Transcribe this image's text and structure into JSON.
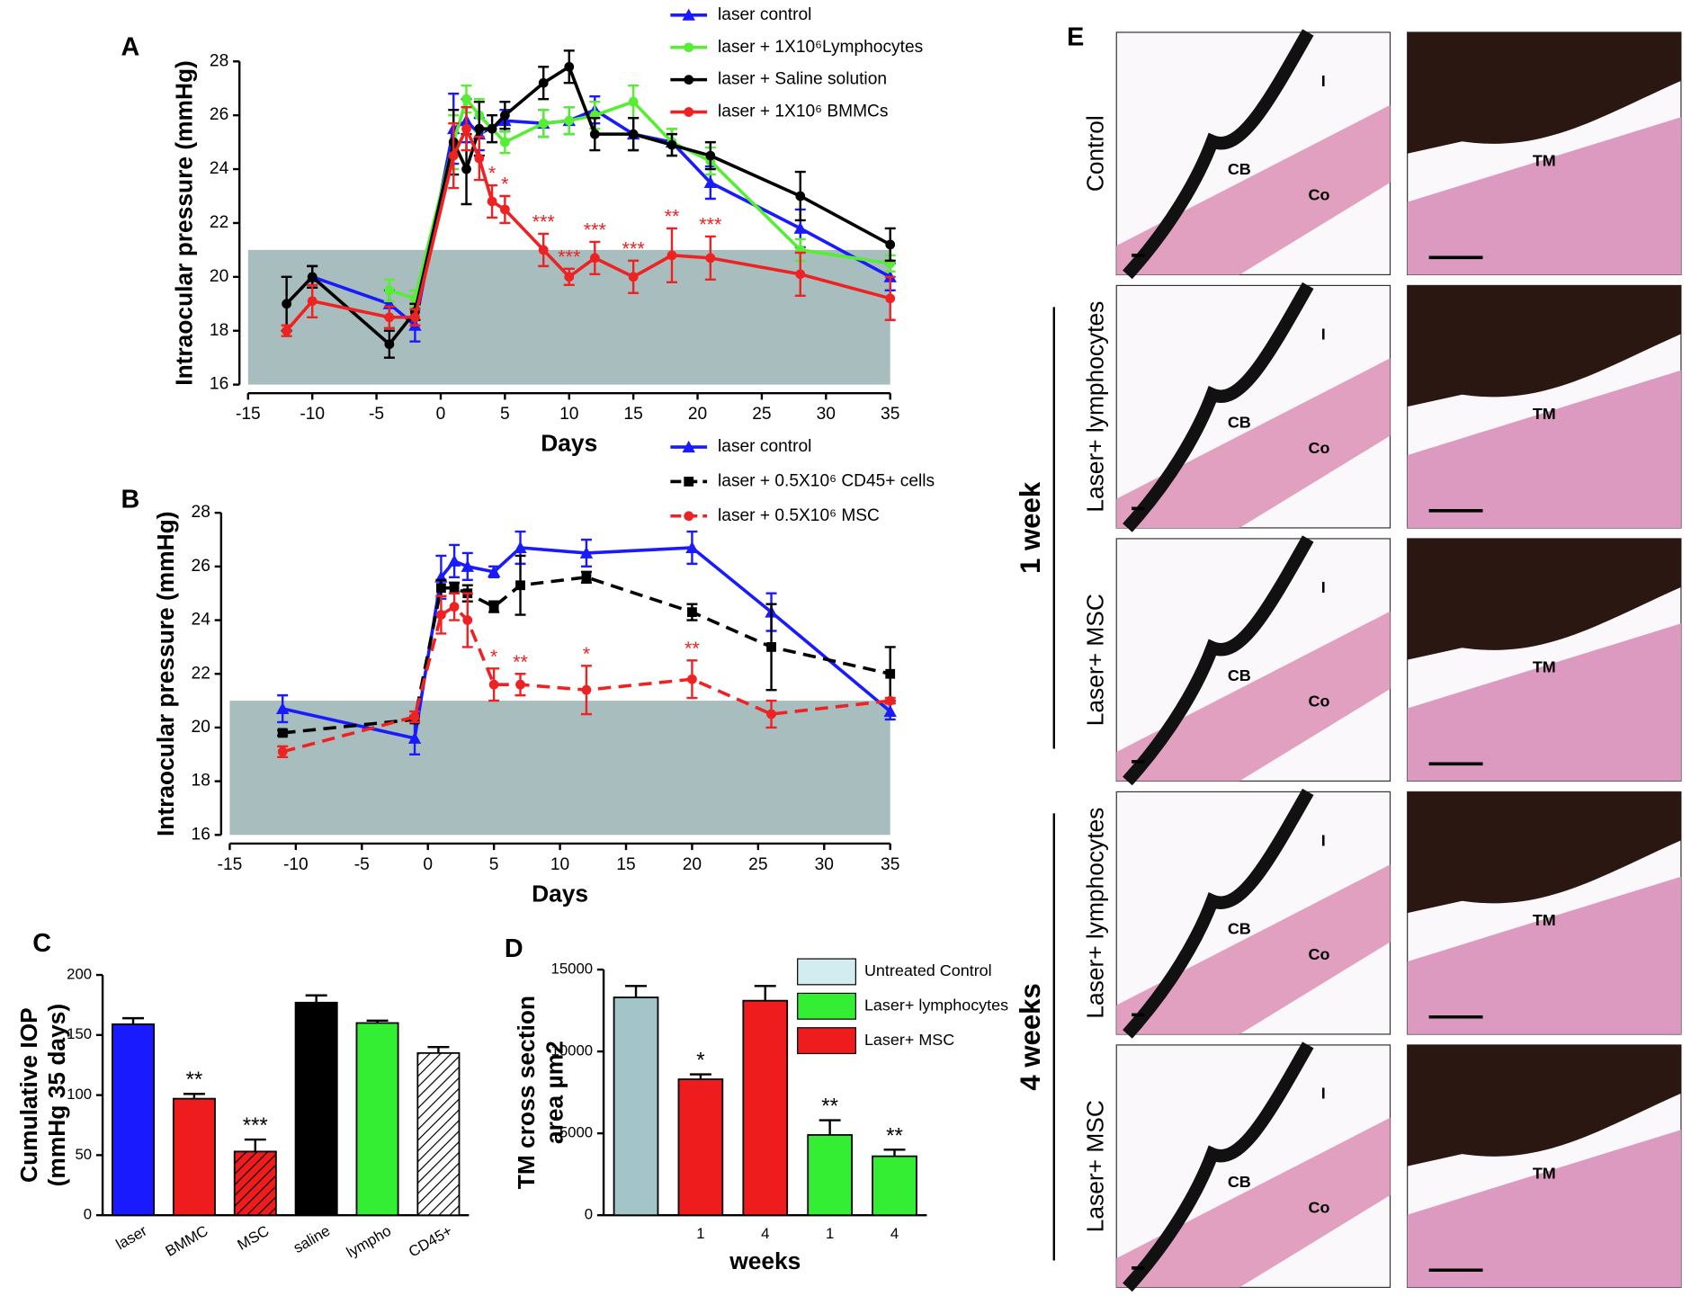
{
  "chart_data": [
    {
      "type": "line",
      "panel_label": "A",
      "xlabel": "Days",
      "ylabel": "Intraocular pressure (mmHg)",
      "xlim": [
        -15,
        35
      ],
      "ylim": [
        16,
        28
      ],
      "xticks": [
        -15,
        -10,
        -5,
        0,
        5,
        10,
        15,
        20,
        25,
        30,
        35
      ],
      "yticks": [
        16,
        18,
        20,
        22,
        24,
        26,
        28
      ],
      "shaded_band": [
        16,
        21
      ],
      "shaded_color": "#a8bdbd",
      "series": [
        {
          "name": "laser control",
          "color": "#1a1aff",
          "marker": "triangle",
          "dash": false,
          "x": [
            -10,
            -4,
            -2,
            1,
            2,
            3,
            5,
            8,
            10,
            12,
            15,
            18,
            21,
            28,
            35
          ],
          "values": [
            20,
            19,
            18.2,
            25.5,
            25.8,
            25.3,
            25.8,
            25.7,
            25.8,
            26.2,
            25.3,
            25,
            23.5,
            21.8,
            20
          ],
          "errors": [
            0.4,
            0.5,
            0.6,
            1.3,
            0.8,
            0.6,
            0.4,
            0.5,
            0.5,
            0.5,
            0.6,
            0.5,
            0.6,
            0.7,
            0.5
          ]
        },
        {
          "name": "laser + 1X10⁶Lymphocytes",
          "color": "#55ee33",
          "marker": "circle",
          "dash": false,
          "x": [
            -4,
            -2,
            1,
            2,
            3,
            5,
            8,
            10,
            12,
            15,
            18,
            21,
            28,
            35
          ],
          "values": [
            19.5,
            19.2,
            25,
            26.6,
            26,
            25,
            25.7,
            25.8,
            26,
            26.5,
            25,
            24.3,
            21,
            20.5
          ],
          "errors": [
            0.4,
            0.3,
            1,
            0.5,
            0.6,
            0.4,
            0.5,
            0.5,
            0.5,
            0.6,
            0.5,
            0.5,
            0.4,
            0.3
          ]
        },
        {
          "name": "laser + Saline solution",
          "color": "#000000",
          "marker": "circle",
          "dash": false,
          "x": [
            -12,
            -10,
            -4,
            -2,
            1,
            2,
            3,
            4,
            5,
            8,
            10,
            12,
            15,
            18,
            21,
            28,
            35
          ],
          "values": [
            19,
            20,
            17.5,
            18.7,
            25,
            24,
            25.5,
            25.5,
            26,
            27.2,
            27.8,
            25.3,
            25.3,
            24.9,
            24.5,
            23,
            21.2
          ],
          "errors": [
            1,
            0.4,
            0.5,
            0.3,
            1.2,
            1.3,
            1,
            0.5,
            0.5,
            0.6,
            0.6,
            0.6,
            0.6,
            0.4,
            0.5,
            0.9,
            0.6
          ]
        },
        {
          "name": "laser + 1X10⁶ BMMCs",
          "color": "#ee2222",
          "marker": "circle",
          "dash": false,
          "x": [
            -12,
            -10,
            -4,
            -2,
            1,
            2,
            3,
            4,
            5,
            8,
            10,
            12,
            15,
            18,
            21,
            28,
            35
          ],
          "values": [
            18,
            19.1,
            18.5,
            18.5,
            24.5,
            25.5,
            24.4,
            22.8,
            22.5,
            21,
            20,
            20.7,
            20,
            20.8,
            20.7,
            20.1,
            19.2
          ],
          "errors": [
            0.2,
            0.6,
            0.4,
            0.3,
            1.2,
            0.8,
            0.8,
            0.6,
            0.5,
            0.6,
            0.3,
            0.6,
            0.6,
            1,
            0.8,
            0.8,
            0.8
          ],
          "significance": [
            null,
            null,
            null,
            null,
            null,
            null,
            null,
            "*",
            "*",
            "***",
            "***",
            "***",
            "***",
            "**",
            "***",
            null,
            null
          ]
        }
      ]
    },
    {
      "type": "line",
      "panel_label": "B",
      "xlabel": "Days",
      "ylabel": "Intraocular pressure (mmHg)",
      "xlim": [
        -15,
        35
      ],
      "ylim": [
        16,
        28
      ],
      "xticks": [
        -15,
        -10,
        -5,
        0,
        5,
        10,
        15,
        20,
        25,
        30,
        35
      ],
      "yticks": [
        16,
        18,
        20,
        22,
        24,
        26,
        28
      ],
      "shaded_band": [
        16,
        21
      ],
      "shaded_color": "#a8bdbd",
      "series": [
        {
          "name": "laser control",
          "color": "#1a1aff",
          "marker": "triangle",
          "dash": false,
          "x": [
            -11,
            -1,
            1,
            2,
            3,
            5,
            7,
            12,
            20,
            26,
            35
          ],
          "values": [
            20.7,
            19.6,
            25.6,
            26.2,
            26,
            25.8,
            26.7,
            26.5,
            26.7,
            24.3,
            20.6
          ],
          "errors": [
            0.5,
            0.6,
            0.8,
            0.6,
            0.5,
            0.2,
            0.6,
            0.5,
            0.6,
            0.7,
            0.3
          ]
        },
        {
          "name": "laser + 0.5X10⁶ CD45+ cells",
          "color": "#000000",
          "marker": "square",
          "dash": true,
          "x": [
            -11,
            -1,
            1,
            2,
            3,
            5,
            7,
            12,
            20,
            26,
            35
          ],
          "values": [
            19.8,
            20.3,
            25.2,
            25.2,
            25,
            24.5,
            25.3,
            25.6,
            24.3,
            23,
            22
          ],
          "errors": [
            0.1,
            0.1,
            0.3,
            0.2,
            0.3,
            0.2,
            1.1,
            0.2,
            0.3,
            1.6,
            1
          ]
        },
        {
          "name": "laser + 0.5X10⁶ MSC",
          "color": "#ee2222",
          "marker": "circle",
          "dash": true,
          "x": [
            -11,
            -1,
            1,
            2,
            3,
            5,
            7,
            12,
            20,
            26,
            35
          ],
          "values": [
            19.1,
            20.4,
            24.2,
            24.5,
            24,
            21.6,
            21.6,
            21.4,
            21.8,
            20.5,
            21
          ],
          "errors": [
            0.2,
            0.2,
            0.7,
            0.5,
            1,
            0.6,
            0.4,
            0.9,
            0.7,
            0.5,
            0.1
          ],
          "significance": [
            null,
            null,
            null,
            null,
            null,
            "*",
            "**",
            "*",
            "**",
            null,
            null
          ]
        }
      ]
    },
    {
      "type": "bar",
      "panel_label": "C",
      "ylabel": [
        "Cumulative IOP",
        "(mmHg 35 days)"
      ],
      "categories": [
        "laser",
        "BMMC",
        "MSC",
        "saline",
        "lympho",
        "CD45+"
      ],
      "values": [
        159,
        97,
        53,
        177,
        160,
        135
      ],
      "errors": [
        5,
        4,
        10,
        6,
        2,
        5
      ],
      "colors": [
        "#1a1aff",
        "#ee1c1c",
        "#ee1c1c",
        "#000000",
        "#33ee33",
        "#ffffff"
      ],
      "hatch": [
        false,
        false,
        true,
        false,
        false,
        true
      ],
      "significance": [
        null,
        "**",
        "***",
        null,
        null,
        null
      ],
      "ylim": [
        0,
        200
      ],
      "yticks": [
        0,
        50,
        100,
        150,
        200
      ]
    },
    {
      "type": "bar",
      "panel_label": "D",
      "xlabel": "weeks",
      "ylabel": [
        "TM cross section",
        "area µm2"
      ],
      "categories": [
        null,
        "1",
        "4",
        "1",
        "4"
      ],
      "values": [
        13300,
        8300,
        13100,
        4900,
        3600
      ],
      "errors": [
        700,
        300,
        900,
        900,
        400
      ],
      "colors": [
        "#a3c4c9",
        "#ee1c1c",
        "#ee1c1c",
        "#33ee33",
        "#33ee33"
      ],
      "hatch": [
        false,
        false,
        false,
        false,
        false
      ],
      "significance": [
        null,
        "*",
        null,
        "**",
        "**"
      ],
      "ylim": [
        0,
        15000
      ],
      "yticks": [
        0,
        5000,
        10000,
        15000
      ],
      "legend": [
        {
          "name": "Untreated Control",
          "color": "#d2ecef"
        },
        {
          "name": "Laser+ lymphocytes",
          "color": "#33ee33"
        },
        {
          "name": "Laser+ MSC",
          "color": "#ee1c1c"
        }
      ]
    }
  ],
  "panel_e": {
    "panel_label": "E",
    "group_labels": [
      "1 week",
      "4 weeks"
    ],
    "rows": [
      {
        "label": "Control",
        "left": [
          "CB",
          "Co",
          "I"
        ],
        "right": [
          "TM"
        ]
      },
      {
        "label": "Laser+ lymphocytes",
        "left": [
          "CB",
          "Co",
          "I"
        ],
        "right": [
          "TM"
        ]
      },
      {
        "label": "Laser+ MSC",
        "left": [
          "CB",
          "Co",
          "I"
        ],
        "right": [
          "TM"
        ]
      },
      {
        "label": "Laser+ lymphocytes",
        "left": [
          "CB",
          "Co",
          "I"
        ],
        "right": [
          "TM"
        ]
      },
      {
        "label": "Laser+ MSC",
        "left": [
          "CB",
          "Co",
          "I"
        ],
        "right": [
          "TM"
        ]
      }
    ]
  }
}
